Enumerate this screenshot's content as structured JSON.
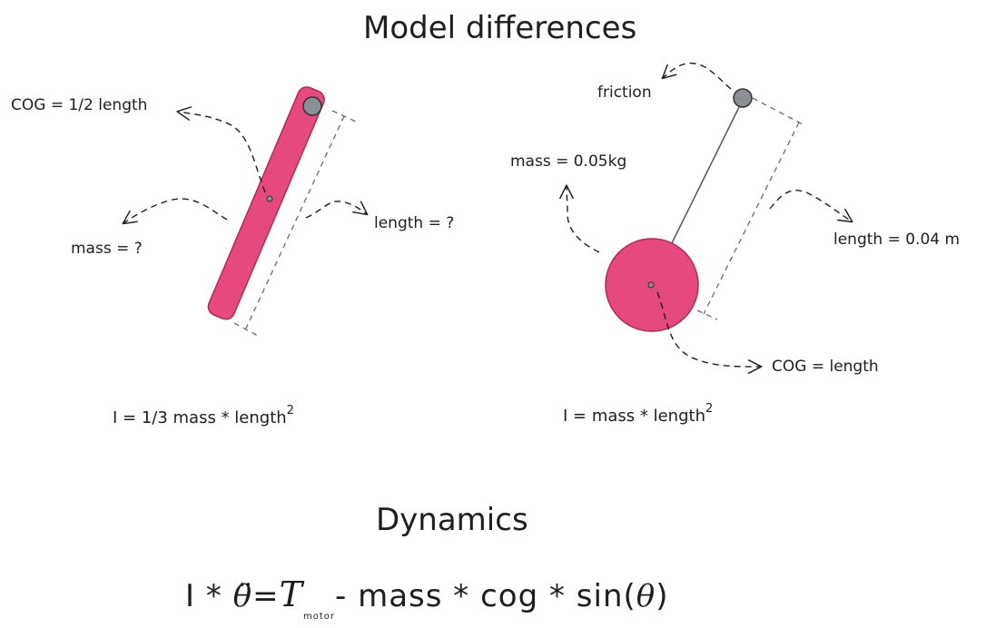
{
  "colors": {
    "accent": "#e5497e",
    "pivot": "#8b9096",
    "ink": "#1e1e1e",
    "dash": "#6b6b6b"
  },
  "titles": {
    "main": "Model differences",
    "dynamics": "Dynamics"
  },
  "rod": {
    "cog": "COG = 1/2 length",
    "mass": "mass = ?",
    "length": "length = ?",
    "inertia": "I = 1/3 mass * length",
    "inertia_exp": "2"
  },
  "pendulum": {
    "friction": "friction",
    "mass": "mass = 0.05kg",
    "length": "length = 0.04 m",
    "cog": "COG = length",
    "inertia": "I = mass * length",
    "inertia_exp": "2"
  },
  "equation": {
    "lhs_start": "I * ",
    "theta_ddot": "θ̈",
    "equals": "=",
    "tau": "T",
    "tau_sub": "motor",
    "rhs_mid": "- mass * cog * sin(",
    "theta": "θ",
    "rhs_end": ")"
  }
}
